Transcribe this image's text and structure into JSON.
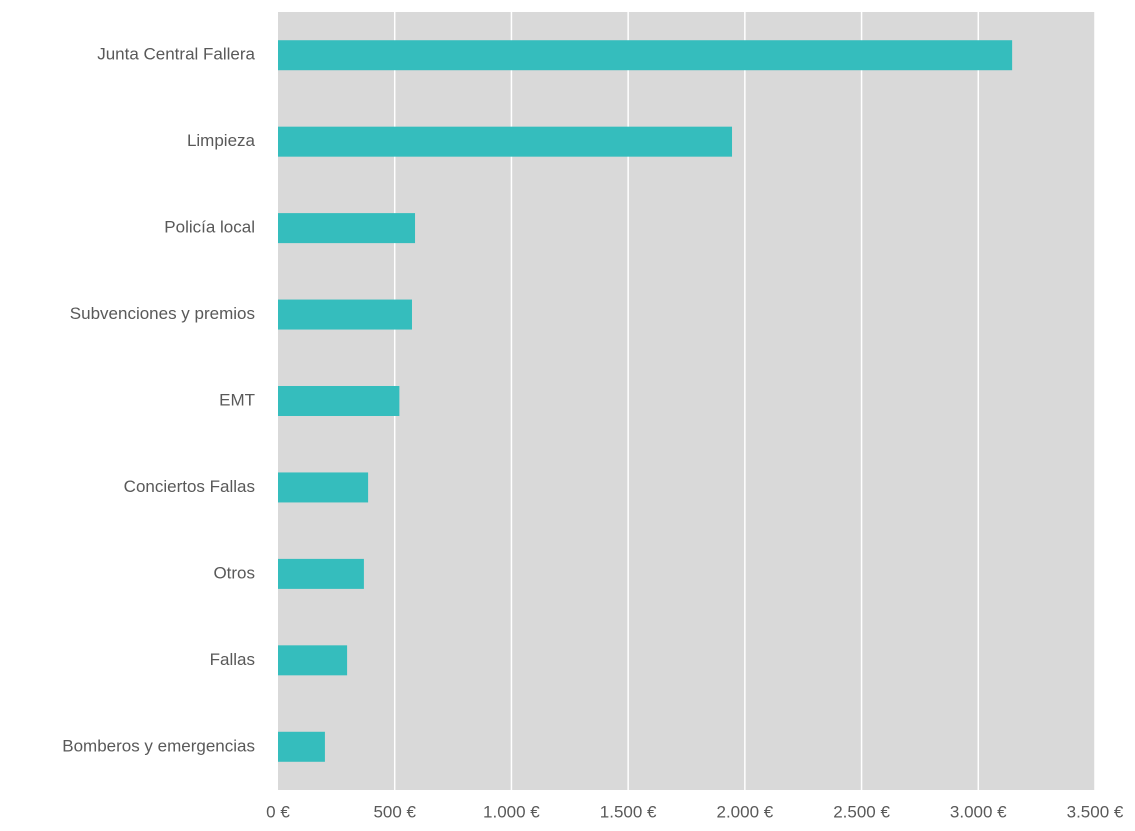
{
  "chart_data": {
    "type": "bar",
    "orientation": "horizontal",
    "categories": [
      "Junta Central Fallera",
      "Limpieza",
      "Policía local",
      "Subvenciones y premios",
      "EMT",
      "Conciertos Fallas",
      "Otros",
      "Fallas",
      "Bomberos y emergencias"
    ],
    "values": [
      3145,
      1945,
      587,
      574,
      520,
      386,
      368,
      296,
      201
    ],
    "color": "#35bdbd",
    "xlim": [
      0,
      3500
    ],
    "xticks": [
      {
        "value": 0,
        "label": "0 €"
      },
      {
        "value": 500,
        "label": "500 €"
      },
      {
        "value": 1000,
        "label": "1.000 €"
      },
      {
        "value": 1500,
        "label": "1.500 €"
      },
      {
        "value": 2000,
        "label": "2.000 €"
      },
      {
        "value": 2500,
        "label": "2.500 €"
      },
      {
        "value": 3000,
        "label": "3.000 €"
      },
      {
        "value": 3500,
        "label": "3.500 €"
      }
    ],
    "grid": true
  }
}
